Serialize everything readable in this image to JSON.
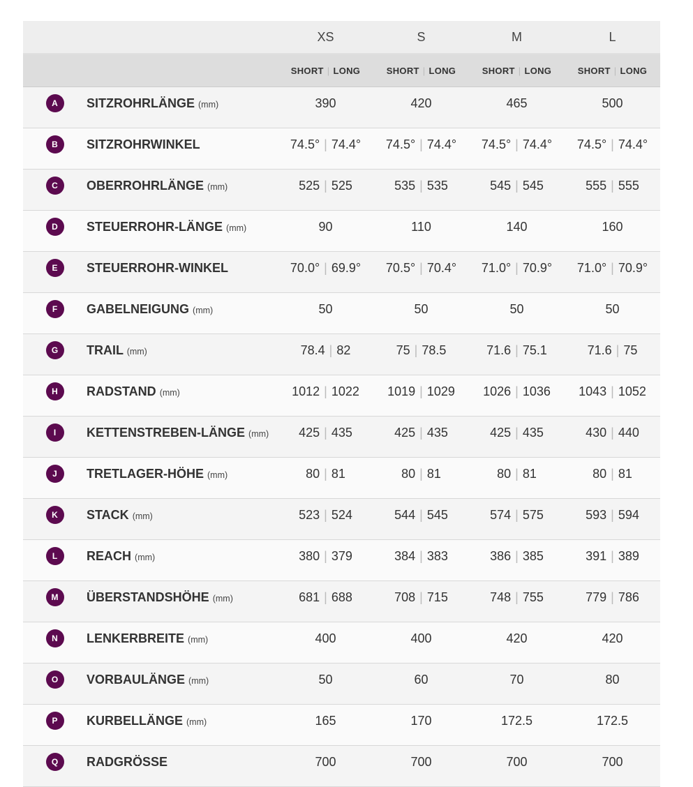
{
  "sizes": [
    "XS",
    "S",
    "M",
    "L"
  ],
  "subheader": {
    "short": "SHORT",
    "long": "LONG"
  },
  "accent": "#5c0a4f",
  "rows": [
    {
      "letter": "A",
      "label": "SITZROHRLÄNGE",
      "unit": "(mm)",
      "values": [
        "390",
        "420",
        "465",
        "500"
      ]
    },
    {
      "letter": "B",
      "label": "SITZROHRWINKEL",
      "unit": "",
      "values": [
        [
          "74.5°",
          "74.4°"
        ],
        [
          "74.5°",
          "74.4°"
        ],
        [
          "74.5°",
          "74.4°"
        ],
        [
          "74.5°",
          "74.4°"
        ]
      ]
    },
    {
      "letter": "C",
      "label": "OBERROHRLÄNGE",
      "unit": "(mm)",
      "values": [
        [
          "525",
          "525"
        ],
        [
          "535",
          "535"
        ],
        [
          "545",
          "545"
        ],
        [
          "555",
          "555"
        ]
      ]
    },
    {
      "letter": "D",
      "label": "STEUERROHR-LÄNGE",
      "unit": "(mm)",
      "values": [
        "90",
        "110",
        "140",
        "160"
      ]
    },
    {
      "letter": "E",
      "label": "STEUERROHR-WINKEL",
      "unit": "",
      "values": [
        [
          "70.0°",
          "69.9°"
        ],
        [
          "70.5°",
          "70.4°"
        ],
        [
          "71.0°",
          "70.9°"
        ],
        [
          "71.0°",
          "70.9°"
        ]
      ]
    },
    {
      "letter": "F",
      "label": "GABELNEIGUNG",
      "unit": "(mm)",
      "values": [
        "50",
        "50",
        "50",
        "50"
      ]
    },
    {
      "letter": "G",
      "label": "TRAIL",
      "unit": "(mm)",
      "values": [
        [
          "78.4",
          "82"
        ],
        [
          "75",
          "78.5"
        ],
        [
          "71.6",
          "75.1"
        ],
        [
          "71.6",
          "75"
        ]
      ]
    },
    {
      "letter": "H",
      "label": "RADSTAND",
      "unit": "(mm)",
      "values": [
        [
          "1012",
          "1022"
        ],
        [
          "1019",
          "1029"
        ],
        [
          "1026",
          "1036"
        ],
        [
          "1043",
          "1052"
        ]
      ]
    },
    {
      "letter": "I",
      "label": "KETTENSTREBEN-LÄNGE",
      "unit": "(mm)",
      "values": [
        [
          "425",
          "435"
        ],
        [
          "425",
          "435"
        ],
        [
          "425",
          "435"
        ],
        [
          "430",
          "440"
        ]
      ]
    },
    {
      "letter": "J",
      "label": "TRETLAGER-HÖHE",
      "unit": "(mm)",
      "values": [
        [
          "80",
          "81"
        ],
        [
          "80",
          "81"
        ],
        [
          "80",
          "81"
        ],
        [
          "80",
          "81"
        ]
      ]
    },
    {
      "letter": "K",
      "label": "STACK",
      "unit": "(mm)",
      "values": [
        [
          "523",
          "524"
        ],
        [
          "544",
          "545"
        ],
        [
          "574",
          "575"
        ],
        [
          "593",
          "594"
        ]
      ]
    },
    {
      "letter": "L",
      "label": "REACH",
      "unit": "(mm)",
      "values": [
        [
          "380",
          "379"
        ],
        [
          "384",
          "383"
        ],
        [
          "386",
          "385"
        ],
        [
          "391",
          "389"
        ]
      ]
    },
    {
      "letter": "M",
      "label": "ÜBERSTANDSHÖHE",
      "unit": "(mm)",
      "values": [
        [
          "681",
          "688"
        ],
        [
          "708",
          "715"
        ],
        [
          "748",
          "755"
        ],
        [
          "779",
          "786"
        ]
      ]
    },
    {
      "letter": "N",
      "label": "LENKERBREITE",
      "unit": "(mm)",
      "values": [
        "400",
        "400",
        "420",
        "420"
      ]
    },
    {
      "letter": "O",
      "label": "VORBAULÄNGE",
      "unit": "(mm)",
      "values": [
        "50",
        "60",
        "70",
        "80"
      ]
    },
    {
      "letter": "P",
      "label": "KURBELLÄNGE",
      "unit": "(mm)",
      "values": [
        "165",
        "170",
        "172.5",
        "172.5"
      ]
    },
    {
      "letter": "Q",
      "label": "RADGRÖSSE",
      "unit": "",
      "values": [
        "700",
        "700",
        "700",
        "700"
      ]
    }
  ]
}
